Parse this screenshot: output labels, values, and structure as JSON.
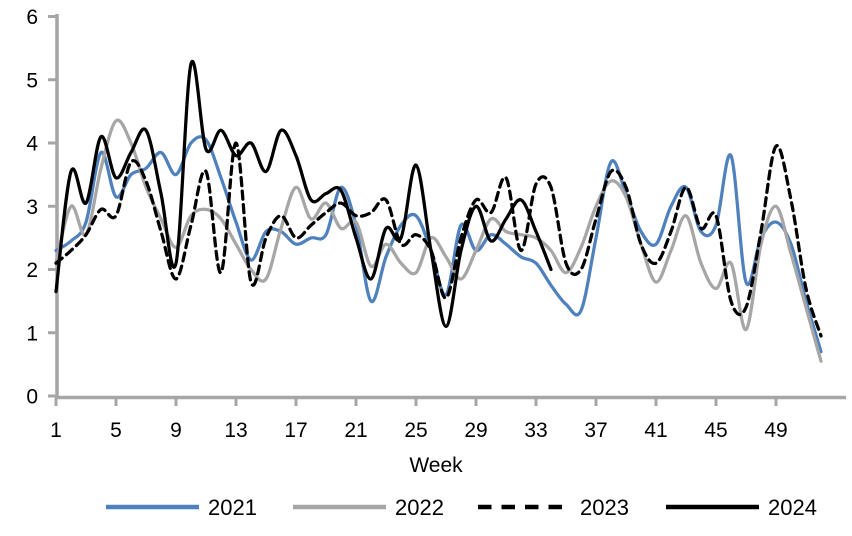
{
  "chart_data": {
    "type": "line",
    "title": "",
    "xlabel": "Week",
    "ylabel": "",
    "xlim": [
      1,
      52
    ],
    "ylim": [
      0,
      6
    ],
    "grid": false,
    "legend_position": "bottom",
    "axis_color": "#A6A6A6",
    "text_color": "#000000",
    "x_ticks": [
      1,
      5,
      9,
      13,
      17,
      21,
      25,
      29,
      33,
      37,
      41,
      45,
      49
    ],
    "y_ticks": [
      0,
      1,
      2,
      3,
      4,
      5,
      6
    ],
    "weeks": [
      1,
      2,
      3,
      4,
      5,
      6,
      7,
      8,
      9,
      10,
      11,
      12,
      13,
      14,
      15,
      16,
      17,
      18,
      19,
      20,
      21,
      22,
      23,
      24,
      25,
      26,
      27,
      28,
      29,
      30,
      31,
      32,
      33,
      34,
      35,
      36,
      37,
      38,
      39,
      40,
      41,
      42,
      43,
      44,
      45,
      46,
      47,
      48,
      49,
      50,
      51,
      52
    ],
    "series": [
      {
        "name": "2021",
        "color": "#4F81BD",
        "style": "solid",
        "values": [
          2.3,
          2.45,
          2.75,
          3.85,
          3.15,
          3.5,
          3.6,
          3.85,
          3.5,
          4.0,
          4.05,
          3.45,
          2.75,
          2.15,
          2.6,
          2.6,
          2.4,
          2.5,
          2.55,
          3.3,
          2.7,
          1.5,
          2.2,
          2.7,
          2.85,
          2.3,
          1.6,
          2.7,
          2.3,
          2.55,
          2.4,
          2.2,
          2.1,
          1.75,
          1.45,
          1.35,
          2.5,
          3.7,
          3.2,
          2.6,
          2.4,
          3.0,
          3.3,
          2.6,
          2.7,
          3.8,
          1.8,
          2.5,
          2.75,
          2.4,
          1.5,
          0.7
        ]
      },
      {
        "name": "2022",
        "color": "#A6A6A6",
        "style": "solid",
        "values": [
          2.1,
          3.0,
          2.55,
          3.6,
          4.35,
          4.0,
          3.3,
          2.8,
          2.35,
          2.85,
          2.95,
          2.8,
          2.4,
          2.0,
          1.85,
          2.65,
          3.3,
          2.8,
          3.05,
          2.65,
          2.75,
          2.05,
          2.4,
          2.1,
          1.95,
          2.5,
          2.2,
          1.85,
          2.3,
          2.8,
          2.6,
          2.55,
          2.5,
          2.3,
          1.95,
          2.35,
          3.0,
          3.4,
          3.15,
          2.4,
          1.8,
          2.3,
          2.85,
          2.1,
          1.7,
          2.1,
          1.05,
          2.4,
          3.0,
          2.25,
          1.4,
          0.55
        ]
      },
      {
        "name": "2023",
        "color": "#000000",
        "style": "dashed",
        "values": [
          2.1,
          2.3,
          2.55,
          2.95,
          2.85,
          3.7,
          3.4,
          2.6,
          1.85,
          2.7,
          3.55,
          1.95,
          4.0,
          1.8,
          2.5,
          2.85,
          2.5,
          2.7,
          2.9,
          3.05,
          2.85,
          2.9,
          3.1,
          2.4,
          2.55,
          2.3,
          1.55,
          2.5,
          3.1,
          2.9,
          3.45,
          2.3,
          3.35,
          3.3,
          2.1,
          2.0,
          2.8,
          3.55,
          3.3,
          2.4,
          2.1,
          2.6,
          3.3,
          2.65,
          2.85,
          1.5,
          1.4,
          2.6,
          3.95,
          3.1,
          1.7,
          0.95
        ]
      },
      {
        "name": "2024",
        "color": "#000000",
        "style": "solid",
        "values": [
          1.65,
          3.55,
          3.05,
          4.1,
          3.45,
          3.85,
          4.2,
          3.2,
          2.1,
          5.25,
          3.9,
          4.2,
          3.8,
          4.0,
          3.55,
          4.2,
          3.8,
          3.1,
          3.2,
          3.25,
          2.5,
          1.85,
          2.65,
          2.5,
          3.65,
          2.3,
          1.1,
          2.3,
          3.0,
          2.45,
          2.8,
          3.1,
          2.6,
          2.0
        ]
      }
    ],
    "legend": [
      "2021",
      "2022",
      "2023",
      "2024"
    ]
  }
}
